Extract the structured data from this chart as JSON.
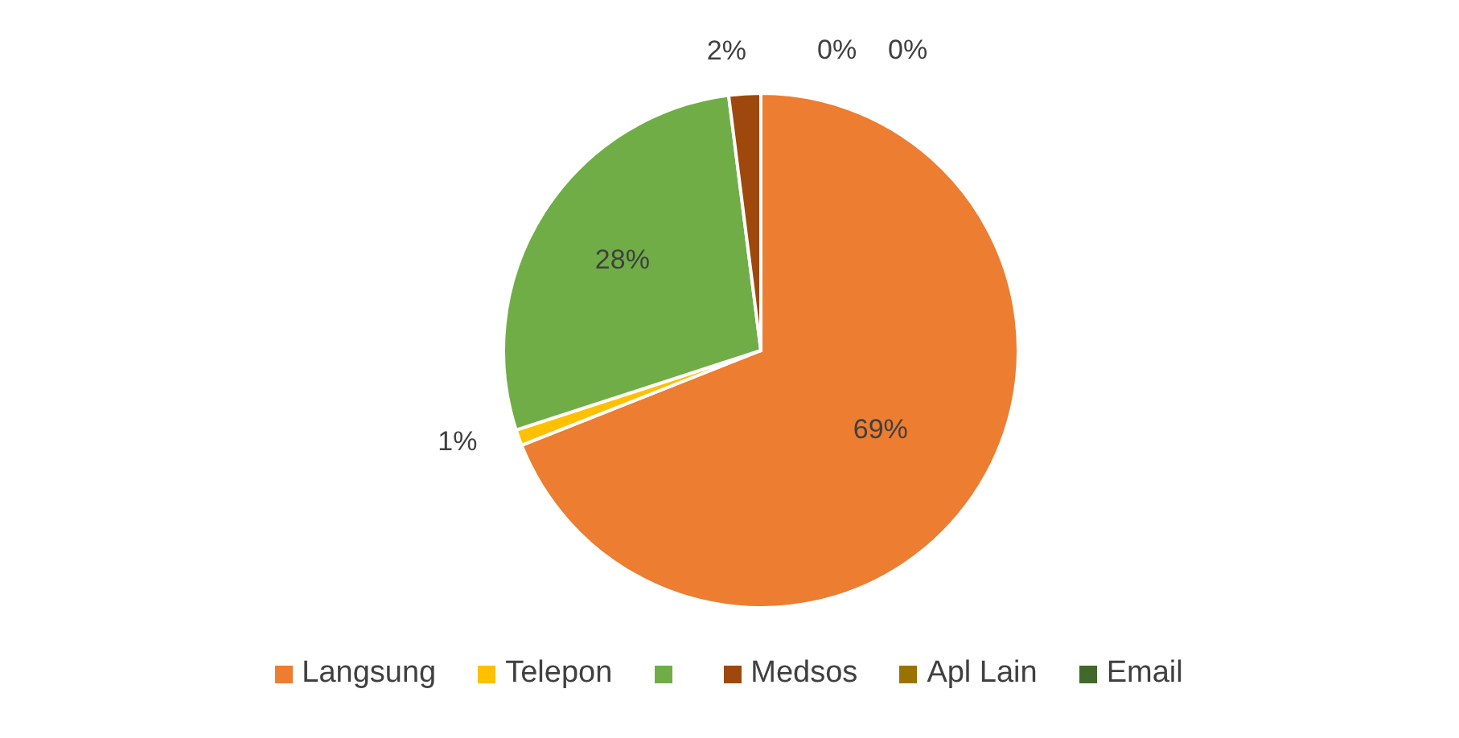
{
  "chart_data": {
    "type": "pie",
    "categories": [
      "Langsung",
      "Telepon",
      null,
      "Medsos",
      "Apl Lain",
      "Email"
    ],
    "values": [
      69,
      1,
      28,
      2,
      0,
      0
    ],
    "colors": [
      "#ed7d31",
      "#ffc000",
      "#70ad47",
      "#9e480e",
      "#997300",
      "#43682b"
    ],
    "value_labels": [
      "69%",
      "1%",
      "28%",
      "2%",
      "0%",
      "0%"
    ],
    "legend": "bottom"
  }
}
